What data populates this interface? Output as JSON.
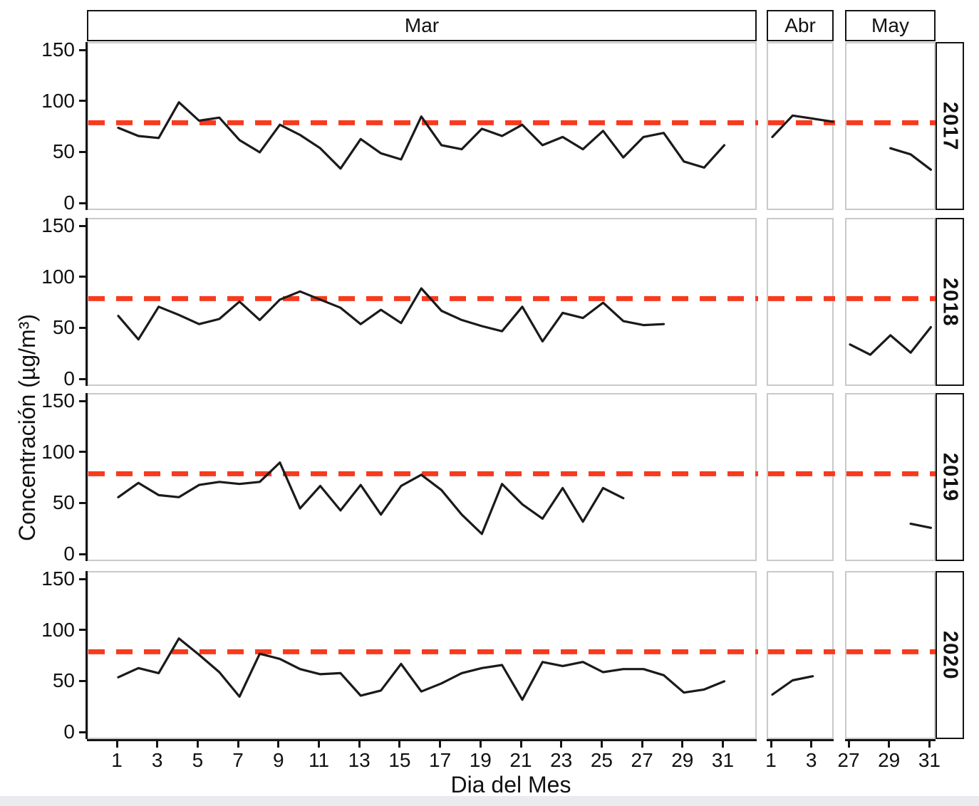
{
  "chart_data": {
    "type": "line",
    "xlabel": "Dia del Mes",
    "ylabel": "Concentración (µg/m³)",
    "ylim": [
      0,
      157
    ],
    "yticks": [
      0,
      50,
      100,
      150
    ],
    "grid": "off",
    "line_color": "#1a1a1a",
    "threshold": {
      "value": 80,
      "color": "#f83a1e",
      "style": "dashed"
    },
    "row_facets": [
      "2017",
      "2018",
      "2019",
      "2020"
    ],
    "col_facets": [
      {
        "label": "Mar",
        "xticks": [
          1,
          3,
          5,
          7,
          9,
          11,
          13,
          15,
          17,
          19,
          21,
          23,
          25,
          27,
          29,
          31
        ]
      },
      {
        "label": "Abr",
        "xticks": [
          1,
          3
        ]
      },
      {
        "label": "May",
        "xticks": [
          27,
          29,
          31
        ]
      }
    ],
    "series": {
      "2017": {
        "Mar": {
          "start_day": 1,
          "values": [
            75,
            67,
            65,
            100,
            82,
            85,
            63,
            51,
            78,
            68,
            55,
            35,
            64,
            50,
            44,
            86,
            58,
            54,
            74,
            67,
            78,
            58,
            66,
            54,
            72,
            46,
            66,
            70,
            42,
            36,
            58
          ]
        },
        "Abr": {
          "start_day": 1,
          "values": [
            66,
            87,
            84,
            81
          ]
        },
        "May": {
          "start_day": 29,
          "values": [
            55,
            49,
            34
          ]
        }
      },
      "2018": {
        "Mar": {
          "start_day": 1,
          "values": [
            63,
            40,
            72,
            64,
            55,
            60,
            77,
            59,
            79,
            87,
            79,
            71,
            55,
            69,
            56,
            90,
            68,
            59,
            53,
            48,
            72,
            38,
            66,
            61,
            76,
            58,
            54,
            55
          ]
        },
        "Abr": null,
        "May": {
          "start_day": 27,
          "values": [
            35,
            25,
            44,
            27,
            52
          ]
        }
      },
      "2019": {
        "Mar": {
          "start_day": 1,
          "values": [
            57,
            71,
            59,
            57,
            69,
            72,
            70,
            72,
            91,
            46,
            68,
            44,
            69,
            40,
            68,
            79,
            64,
            40,
            21,
            70,
            50,
            36,
            66,
            33,
            66,
            56
          ]
        },
        "Abr": null,
        "May": {
          "start_day": 30,
          "values": [
            31,
            27
          ]
        }
      },
      "2020": {
        "Mar": {
          "start_day": 1,
          "values": [
            55,
            64,
            59,
            93,
            77,
            60,
            36,
            78,
            73,
            63,
            58,
            59,
            37,
            42,
            68,
            41,
            49,
            59,
            64,
            67,
            33,
            70,
            66,
            70,
            60,
            63,
            63,
            57,
            40,
            43,
            51
          ]
        },
        "Abr": {
          "start_day": 1,
          "values": [
            38,
            52,
            56
          ]
        },
        "May": null
      }
    }
  }
}
